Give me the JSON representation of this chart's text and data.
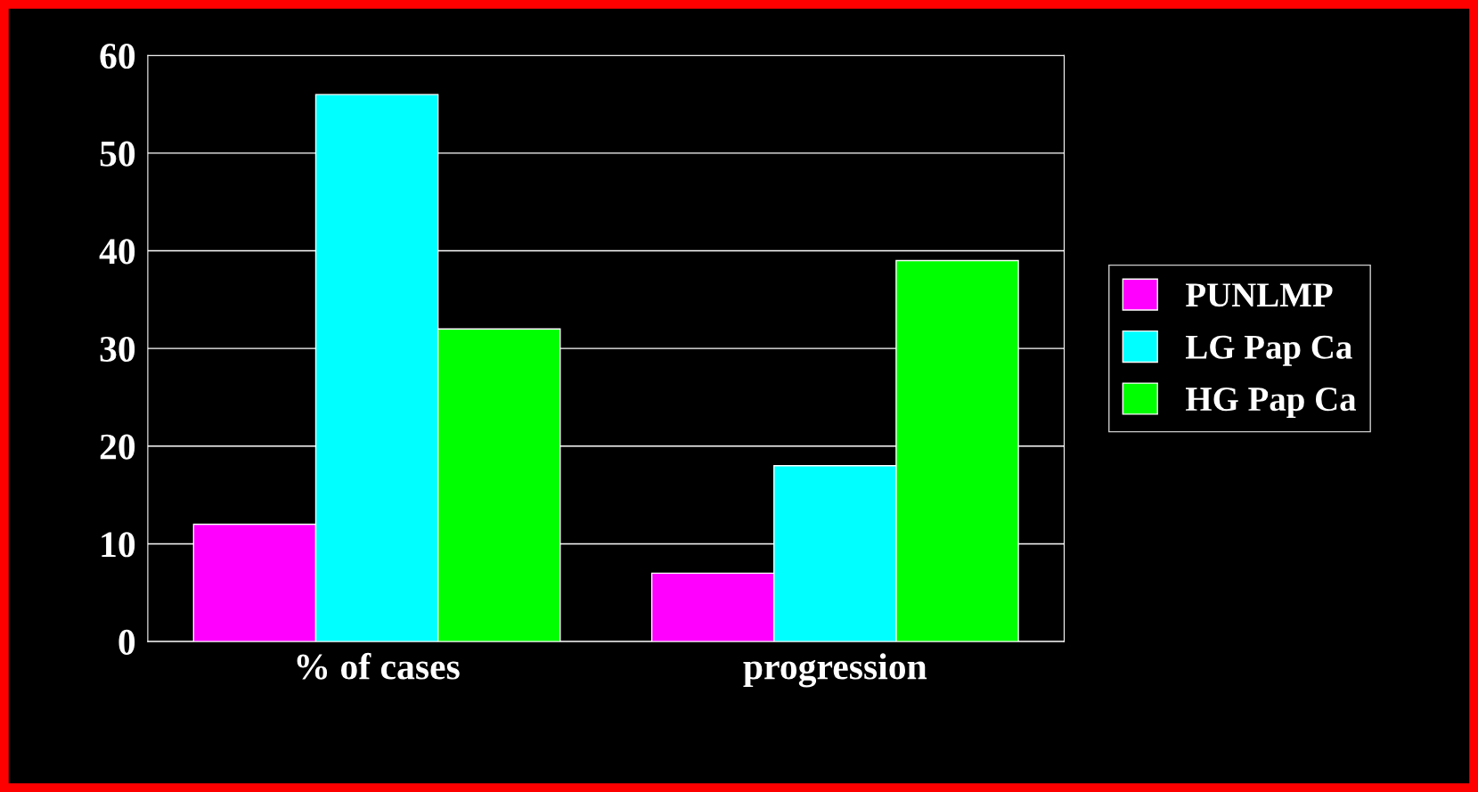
{
  "chart_data": {
    "type": "bar",
    "categories": [
      "% of cases",
      "progression"
    ],
    "series": [
      {
        "name": "PUNLMP",
        "color": "#ff00ff",
        "values": [
          12,
          7
        ]
      },
      {
        "name": "LG Pap Ca",
        "color": "#00ffff",
        "values": [
          56,
          18
        ]
      },
      {
        "name": "HG Pap Ca",
        "color": "#00ff00",
        "values": [
          32,
          39
        ]
      }
    ],
    "ylim": [
      0,
      60
    ],
    "yticks": [
      0,
      10,
      20,
      30,
      40,
      50,
      60
    ],
    "grid": "y",
    "legend": "right"
  }
}
